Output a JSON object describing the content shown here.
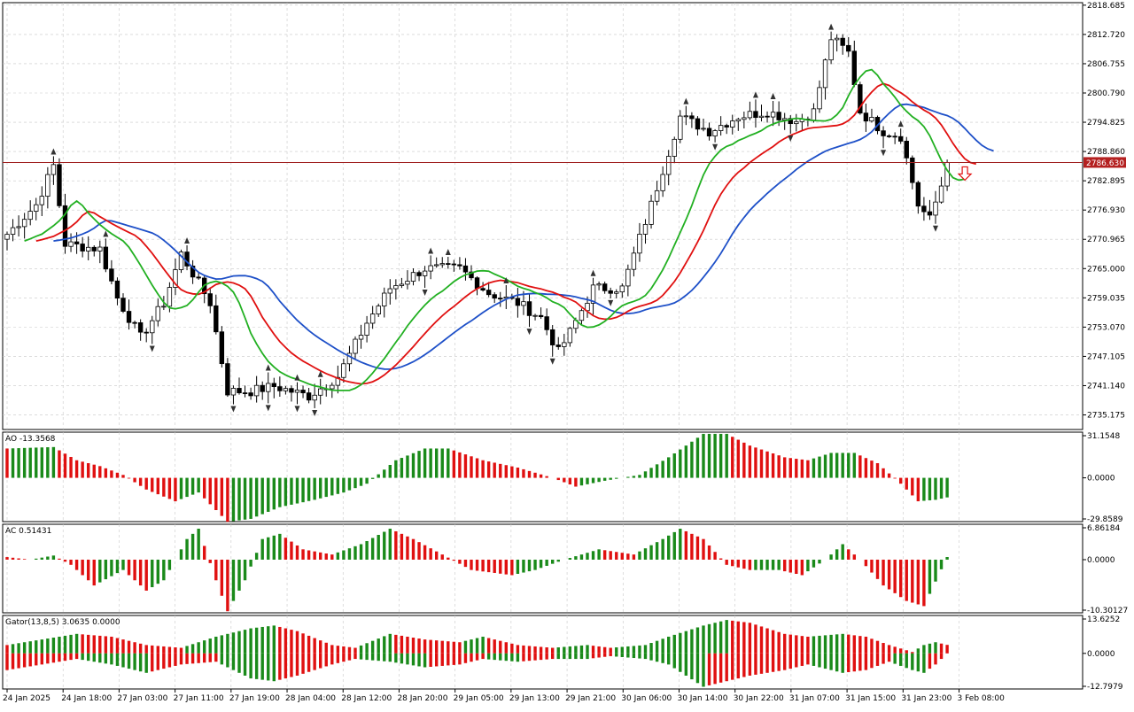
{
  "colors": {
    "background": "#ffffff",
    "grid": "#c8c8c8",
    "frame": "#000000",
    "candle_up": "#ffffff",
    "candle_down": "#000000",
    "jaw": "#1e50c8",
    "teeth": "#e01010",
    "lips": "#22b022",
    "hist_up": "#1a8a1a",
    "hist_down": "#e01010",
    "price_line": "#a02020",
    "current_price_bg": "#b42020",
    "signal_arrow": "#e01010"
  },
  "chart_data": [
    {
      "type": "candlestick",
      "name": "price",
      "y_ticks": [
        "2818.685",
        "2812.720",
        "2806.755",
        "2800.790",
        "2794.825",
        "2788.860",
        "2782.895",
        "2776.930",
        "2770.965",
        "2765.000",
        "2759.035",
        "2753.070",
        "2747.105",
        "2741.140",
        "2735.175"
      ],
      "ylim": [
        2732.2,
        2819.2
      ],
      "current_price": "2786.630",
      "current_price_value": 2786.63,
      "time_labels": [
        "24 Jan 2025",
        "24 Jan 18:00",
        "27 Jan 03:00",
        "27 Jan 11:00",
        "27 Jan 19:00",
        "28 Jan 04:00",
        "28 Jan 12:00",
        "28 Jan 20:00",
        "29 Jan 05:00",
        "29 Jan 13:00",
        "29 Jan 21:00",
        "30 Jan 06:00",
        "30 Jan 14:00",
        "30 Jan 22:00",
        "31 Jan 07:00",
        "31 Jan 15:00",
        "31 Jan 23:00",
        "3 Feb 08:00"
      ],
      "close_anchors": [
        [
          0,
          2772
        ],
        [
          5,
          2778
        ],
        [
          8,
          2786
        ],
        [
          10,
          2770
        ],
        [
          16,
          2769
        ],
        [
          19,
          2759
        ],
        [
          23,
          2751
        ],
        [
          27,
          2758
        ],
        [
          30,
          2768
        ],
        [
          35,
          2758
        ],
        [
          38,
          2740
        ],
        [
          42,
          2740
        ],
        [
          46,
          2741
        ],
        [
          52,
          2739
        ],
        [
          57,
          2743
        ],
        [
          62,
          2754
        ],
        [
          66,
          2761
        ],
        [
          72,
          2765
        ],
        [
          78,
          2765
        ],
        [
          83,
          2760
        ],
        [
          88,
          2758
        ],
        [
          92,
          2755
        ],
        [
          95,
          2748
        ],
        [
          97,
          2752
        ],
        [
          101,
          2761
        ],
        [
          106,
          2761
        ],
        [
          111,
          2778
        ],
        [
          116,
          2796
        ],
        [
          121,
          2793
        ],
        [
          126,
          2796
        ],
        [
          131,
          2797
        ],
        [
          136,
          2795
        ],
        [
          139,
          2797
        ],
        [
          142,
          2812
        ],
        [
          145,
          2809
        ],
        [
          147,
          2797
        ],
        [
          151,
          2793
        ],
        [
          154,
          2792
        ],
        [
          157,
          2778
        ],
        [
          159,
          2775
        ],
        [
          161,
          2782
        ],
        [
          162,
          2786.6
        ]
      ],
      "bar_count": 163
    },
    {
      "type": "histogram",
      "name": "AO",
      "label": "AO -13.3568",
      "y_ticks": [
        "31.1548",
        "0.0000",
        "-29.8589"
      ],
      "ylim": [
        -29.8589,
        31.1548
      ],
      "value_anchors": [
        [
          0,
          20
        ],
        [
          8,
          21
        ],
        [
          12,
          12
        ],
        [
          16,
          8
        ],
        [
          20,
          2
        ],
        [
          24,
          -8
        ],
        [
          29,
          -16
        ],
        [
          33,
          -10
        ],
        [
          38,
          -30
        ],
        [
          42,
          -28
        ],
        [
          47,
          -20
        ],
        [
          53,
          -15
        ],
        [
          58,
          -10
        ],
        [
          62,
          -4
        ],
        [
          67,
          12
        ],
        [
          72,
          20
        ],
        [
          76,
          20
        ],
        [
          82,
          12
        ],
        [
          88,
          7
        ],
        [
          94,
          0
        ],
        [
          98,
          -6
        ],
        [
          103,
          -2
        ],
        [
          109,
          2
        ],
        [
          114,
          14
        ],
        [
          120,
          30
        ],
        [
          124,
          30
        ],
        [
          128,
          22
        ],
        [
          134,
          14
        ],
        [
          138,
          12
        ],
        [
          142,
          17
        ],
        [
          146,
          17
        ],
        [
          150,
          10
        ],
        [
          154,
          -4
        ],
        [
          157,
          -16
        ],
        [
          160,
          -15
        ],
        [
          162,
          -13.36
        ]
      ]
    },
    {
      "type": "histogram",
      "name": "AC",
      "label": "AC 0.51431",
      "y_ticks": [
        "6.86184",
        "0.0000",
        "-10.30127"
      ],
      "ylim": [
        -10.30127,
        6.86184
      ],
      "value_anchors": [
        [
          0,
          0.5
        ],
        [
          4,
          0
        ],
        [
          8,
          0.8
        ],
        [
          11,
          -1
        ],
        [
          15,
          -5
        ],
        [
          20,
          -2
        ],
        [
          24,
          -6
        ],
        [
          27,
          -4
        ],
        [
          31,
          4
        ],
        [
          33,
          6
        ],
        [
          36,
          -4
        ],
        [
          38,
          -10
        ],
        [
          41,
          -4
        ],
        [
          44,
          4
        ],
        [
          47,
          5
        ],
        [
          51,
          2
        ],
        [
          56,
          1
        ],
        [
          61,
          3
        ],
        [
          66,
          6
        ],
        [
          70,
          4
        ],
        [
          75,
          1
        ],
        [
          80,
          -2
        ],
        [
          87,
          -3
        ],
        [
          91,
          -2
        ],
        [
          96,
          0
        ],
        [
          102,
          2
        ],
        [
          108,
          1
        ],
        [
          113,
          4
        ],
        [
          116,
          6
        ],
        [
          120,
          4
        ],
        [
          124,
          -1
        ],
        [
          128,
          -2
        ],
        [
          133,
          -2
        ],
        [
          137,
          -3
        ],
        [
          141,
          0
        ],
        [
          144,
          3
        ],
        [
          147,
          0
        ],
        [
          151,
          -5
        ],
        [
          155,
          -8
        ],
        [
          158,
          -9
        ],
        [
          162,
          0.51
        ]
      ]
    },
    {
      "type": "histogram",
      "name": "Gator",
      "label": "Gator(13,8,5) 3.0635 0.0000",
      "y_ticks": [
        "13.6252",
        "0.0000",
        "-12.7979"
      ],
      "ylim": [
        -12.7979,
        13.6252
      ],
      "upper_anchors": [
        [
          0,
          3
        ],
        [
          6,
          5
        ],
        [
          12,
          7
        ],
        [
          18,
          6
        ],
        [
          24,
          3
        ],
        [
          30,
          2
        ],
        [
          36,
          6
        ],
        [
          42,
          9
        ],
        [
          46,
          10
        ],
        [
          50,
          8
        ],
        [
          56,
          3
        ],
        [
          60,
          2
        ],
        [
          66,
          7
        ],
        [
          72,
          5
        ],
        [
          78,
          4
        ],
        [
          82,
          6
        ],
        [
          88,
          3
        ],
        [
          94,
          2
        ],
        [
          100,
          3
        ],
        [
          104,
          2
        ],
        [
          110,
          3
        ],
        [
          114,
          6
        ],
        [
          120,
          10
        ],
        [
          124,
          12
        ],
        [
          128,
          11
        ],
        [
          134,
          7
        ],
        [
          138,
          6
        ],
        [
          144,
          7
        ],
        [
          148,
          6
        ],
        [
          152,
          3
        ],
        [
          156,
          0.5
        ],
        [
          158,
          3
        ],
        [
          160,
          4
        ],
        [
          162,
          3.06
        ]
      ],
      "lower_anchors": [
        [
          0,
          -6
        ],
        [
          6,
          -4
        ],
        [
          12,
          -2
        ],
        [
          18,
          -4
        ],
        [
          24,
          -7
        ],
        [
          30,
          -4
        ],
        [
          36,
          -3
        ],
        [
          42,
          -9
        ],
        [
          46,
          -10
        ],
        [
          50,
          -8
        ],
        [
          56,
          -4
        ],
        [
          60,
          -2
        ],
        [
          66,
          -3
        ],
        [
          72,
          -5
        ],
        [
          78,
          -4
        ],
        [
          82,
          -2
        ],
        [
          88,
          -3
        ],
        [
          94,
          -2
        ],
        [
          100,
          -2
        ],
        [
          104,
          -1
        ],
        [
          110,
          -2
        ],
        [
          114,
          -4
        ],
        [
          120,
          -12
        ],
        [
          124,
          -10
        ],
        [
          128,
          -8
        ],
        [
          134,
          -6
        ],
        [
          138,
          -4
        ],
        [
          144,
          -7
        ],
        [
          148,
          -6
        ],
        [
          152,
          -3
        ],
        [
          156,
          -6
        ],
        [
          158,
          -7
        ],
        [
          160,
          -4
        ],
        [
          162,
          0
        ]
      ]
    }
  ]
}
